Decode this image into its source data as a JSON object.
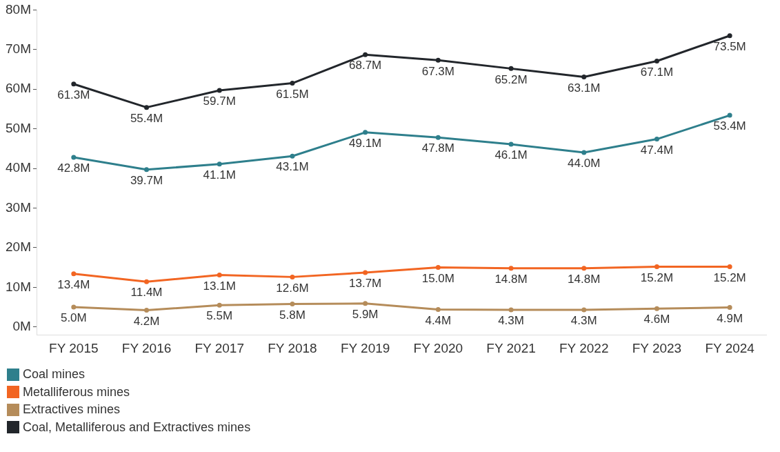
{
  "chart_data": {
    "type": "line",
    "categories": [
      "FY 2015",
      "FY 2016",
      "FY 2017",
      "FY 2018",
      "FY 2019",
      "FY 2020",
      "FY 2021",
      "FY 2022",
      "FY 2023",
      "FY 2024"
    ],
    "series": [
      {
        "name": "Coal mines",
        "color": "#2e7f8c",
        "values": [
          42.8,
          39.7,
          41.1,
          43.1,
          49.1,
          47.8,
          46.1,
          44.0,
          47.4,
          53.4
        ],
        "value_labels": [
          "42.8M",
          "39.7M",
          "41.1M",
          "43.1M",
          "49.1M",
          "47.8M",
          "46.1M",
          "44.0M",
          "47.4M",
          "53.4M"
        ]
      },
      {
        "name": "Metalliferous mines",
        "color": "#f26522",
        "values": [
          13.4,
          11.4,
          13.1,
          12.6,
          13.7,
          15.0,
          14.8,
          14.8,
          15.2,
          15.2
        ],
        "value_labels": [
          "13.4M",
          "11.4M",
          "13.1M",
          "12.6M",
          "13.7M",
          "15.0M",
          "14.8M",
          "14.8M",
          "15.2M",
          "15.2M"
        ]
      },
      {
        "name": "Extractives mines",
        "color": "#b58c5a",
        "values": [
          5.0,
          4.2,
          5.5,
          5.8,
          5.9,
          4.4,
          4.3,
          4.3,
          4.6,
          4.9
        ],
        "value_labels": [
          "5.0M",
          "4.2M",
          "5.5M",
          "5.8M",
          "5.9M",
          "4.4M",
          "4.3M",
          "4.3M",
          "4.6M",
          "4.9M"
        ]
      },
      {
        "name": "Coal, Metalliferous and Extractives mines",
        "color": "#22262b",
        "values": [
          61.3,
          55.4,
          59.7,
          61.5,
          68.7,
          67.3,
          65.2,
          63.1,
          67.1,
          73.5
        ],
        "value_labels": [
          "61.3M",
          "55.4M",
          "59.7M",
          "61.5M",
          "68.7M",
          "67.3M",
          "65.2M",
          "63.1M",
          "67.1M",
          "73.5M"
        ]
      }
    ],
    "ylim": [
      -2,
      80
    ],
    "yticks": [
      {
        "value": 0,
        "label": "0M"
      },
      {
        "value": 10,
        "label": "10M"
      },
      {
        "value": 20,
        "label": "20M"
      },
      {
        "value": 30,
        "label": "30M"
      },
      {
        "value": 40,
        "label": "40M"
      },
      {
        "value": 50,
        "label": "50M"
      },
      {
        "value": 60,
        "label": "60M"
      },
      {
        "value": 70,
        "label": "70M"
      },
      {
        "value": 80,
        "label": "80M"
      }
    ],
    "grid": false,
    "legend": "bottom left",
    "marker": "circle",
    "line_style": "solid"
  }
}
